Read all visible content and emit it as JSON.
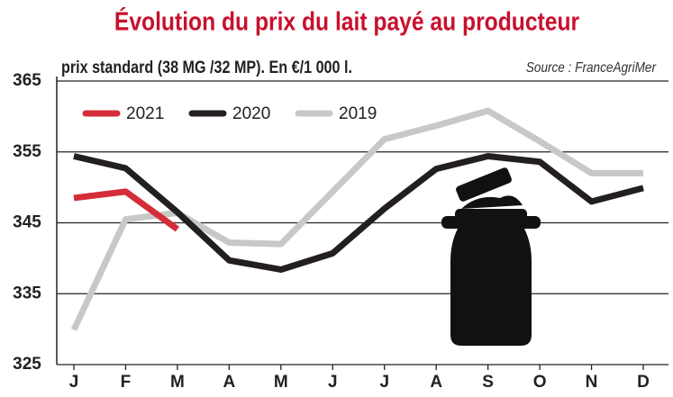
{
  "chart_data": {
    "type": "line",
    "title": "Évolution du prix du lait payé au producteur",
    "subtitle": "prix standard (38 MG /32 MP). En €/1 000 l.",
    "source": "Source : FranceAgriMer",
    "categories": [
      "J",
      "F",
      "M",
      "A",
      "M",
      "J",
      "J",
      "A",
      "S",
      "O",
      "N",
      "D"
    ],
    "series": [
      {
        "name": "2021",
        "color": "#d42d3a",
        "values": [
          348.5,
          349.4,
          344.1,
          null,
          null,
          null,
          null,
          null,
          null,
          null,
          null,
          null
        ]
      },
      {
        "name": "2020",
        "color": "#231f20",
        "values": [
          354.4,
          352.7,
          346.5,
          339.7,
          338.4,
          340.7,
          347.0,
          352.6,
          354.4,
          353.6,
          348.0,
          349.9
        ]
      },
      {
        "name": "2019",
        "color": "#c8c8c8",
        "values": [
          329.9,
          345.5,
          346.4,
          342.2,
          342.0,
          349.4,
          356.8,
          358.7,
          360.8,
          356.5,
          352.0,
          352.0
        ]
      }
    ],
    "ylim": [
      325,
      365
    ],
    "yticks": [
      325,
      335,
      345,
      355,
      365
    ],
    "grid": true
  }
}
